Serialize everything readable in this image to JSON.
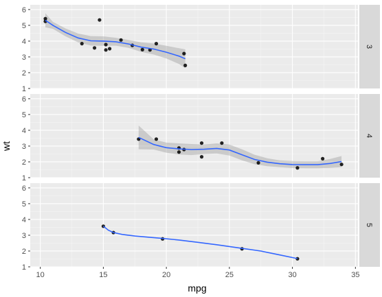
{
  "chart_data": {
    "type": "scatter",
    "facet": "rows",
    "xlabel": "mpg",
    "ylabel": "wt",
    "xlim": [
      9.2,
      35.2
    ],
    "ylim": [
      1.0,
      6.3
    ],
    "x_ticks": [
      10,
      15,
      20,
      25,
      30,
      35
    ],
    "y_ticks": [
      1,
      2,
      3,
      4,
      5,
      6
    ],
    "grid": true,
    "colors": {
      "panel_bg": "#ebebeb",
      "grid_major": "#ffffff",
      "strip_bg": "#d9d9d9",
      "point": "#000000",
      "smooth_line": "#3366ff",
      "ribbon": "#999999"
    },
    "panels": [
      {
        "strip": "3",
        "points": [
          [
            10.4,
            5.25
          ],
          [
            10.4,
            5.42
          ],
          [
            13.3,
            3.84
          ],
          [
            14.3,
            3.57
          ],
          [
            14.7,
            5.34
          ],
          [
            15.2,
            3.78
          ],
          [
            15.2,
            3.44
          ],
          [
            15.5,
            3.52
          ],
          [
            16.4,
            4.07
          ],
          [
            17.3,
            3.73
          ],
          [
            18.1,
            3.46
          ],
          [
            18.7,
            3.44
          ],
          [
            19.2,
            3.84
          ],
          [
            21.4,
            3.21
          ],
          [
            21.5,
            2.46
          ]
        ],
        "smooth": [
          [
            10.4,
            5.32
          ],
          [
            11.0,
            5.0
          ],
          [
            12.0,
            4.55
          ],
          [
            13.0,
            4.2
          ],
          [
            14.0,
            4.02
          ],
          [
            15.0,
            4.0
          ],
          [
            16.0,
            3.96
          ],
          [
            17.0,
            3.82
          ],
          [
            18.0,
            3.62
          ],
          [
            19.0,
            3.5
          ],
          [
            20.0,
            3.3
          ],
          [
            21.0,
            3.05
          ],
          [
            21.5,
            2.88
          ]
        ],
        "band": [
          0.45,
          0.22,
          0.25,
          0.28,
          0.3,
          0.3,
          0.25,
          0.25,
          0.3,
          0.35,
          0.4,
          0.5,
          0.6
        ]
      },
      {
        "strip": "4",
        "points": [
          [
            17.8,
            3.44
          ],
          [
            19.2,
            3.44
          ],
          [
            21.0,
            2.62
          ],
          [
            21.0,
            2.88
          ],
          [
            21.4,
            2.78
          ],
          [
            22.8,
            2.32
          ],
          [
            22.8,
            3.19
          ],
          [
            24.4,
            3.19
          ],
          [
            27.3,
            1.94
          ],
          [
            30.4,
            1.62
          ],
          [
            32.4,
            2.2
          ],
          [
            33.9,
            1.84
          ]
        ],
        "smooth": [
          [
            17.8,
            3.55
          ],
          [
            19.0,
            3.1
          ],
          [
            20.0,
            2.9
          ],
          [
            21.0,
            2.82
          ],
          [
            22.0,
            2.78
          ],
          [
            23.0,
            2.8
          ],
          [
            24.0,
            2.85
          ],
          [
            25.0,
            2.75
          ],
          [
            26.0,
            2.45
          ],
          [
            27.0,
            2.15
          ],
          [
            28.0,
            1.98
          ],
          [
            29.0,
            1.88
          ],
          [
            30.0,
            1.83
          ],
          [
            31.0,
            1.82
          ],
          [
            32.0,
            1.82
          ],
          [
            33.0,
            1.9
          ],
          [
            33.9,
            2.02
          ]
        ],
        "band": [
          0.75,
          0.32,
          0.32,
          0.35,
          0.35,
          0.3,
          0.32,
          0.35,
          0.35,
          0.3,
          0.25,
          0.22,
          0.22,
          0.22,
          0.22,
          0.28,
          0.35
        ]
      },
      {
        "strip": "5",
        "points": [
          [
            15.0,
            3.57
          ],
          [
            15.8,
            3.17
          ],
          [
            19.7,
            2.77
          ],
          [
            26.0,
            2.14
          ],
          [
            30.4,
            1.51
          ]
        ],
        "smooth": [
          [
            15.0,
            3.57
          ],
          [
            15.4,
            3.32
          ],
          [
            15.8,
            3.17
          ],
          [
            16.5,
            3.05
          ],
          [
            17.5,
            2.95
          ],
          [
            18.5,
            2.88
          ],
          [
            19.7,
            2.8
          ],
          [
            21.0,
            2.7
          ],
          [
            22.5,
            2.55
          ],
          [
            24.0,
            2.4
          ],
          [
            26.0,
            2.17
          ],
          [
            27.5,
            2.0
          ],
          [
            29.0,
            1.75
          ],
          [
            30.4,
            1.52
          ]
        ],
        "band": []
      }
    ]
  }
}
